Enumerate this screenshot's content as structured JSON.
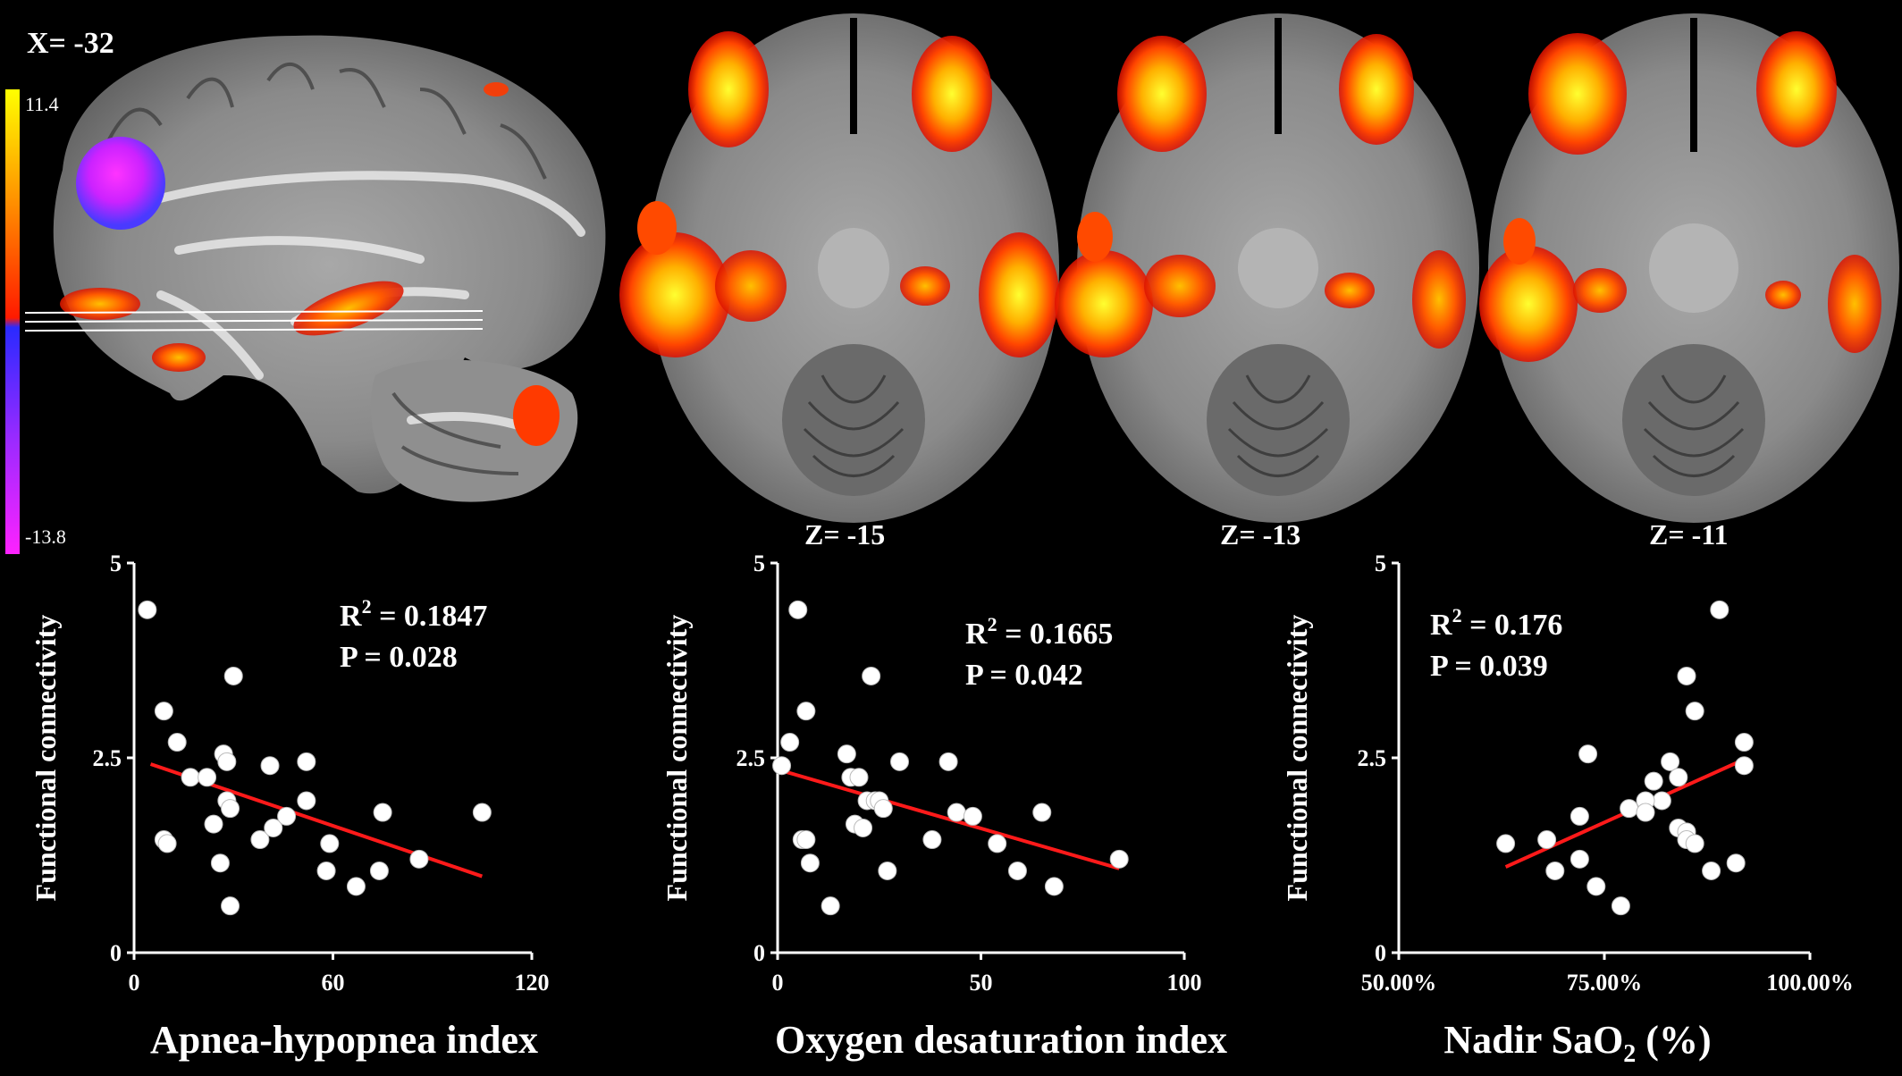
{
  "figure": {
    "sagittal_label": "X= -32",
    "colorbar": {
      "max": "11.4",
      "min": "-13.8",
      "colors": [
        "#ffff00",
        "#ff8c00",
        "#ff1a00",
        "#2a2aff",
        "#ff22ff"
      ]
    },
    "axial_labels": [
      "Z= -15",
      "Z= -13",
      "Z= -11"
    ]
  },
  "chart_data": [
    {
      "type": "scatter",
      "xlabel": "Apnea-hypopnea index",
      "ylabel": "Functional connectivity",
      "xlim": [
        0,
        120
      ],
      "ylim": [
        0,
        5
      ],
      "xticks": [
        "0",
        "60",
        "120"
      ],
      "yticks": [
        "0",
        "2.5",
        "5"
      ],
      "annotation": {
        "r2_prefix": "R",
        "r2_sup": "2",
        "r2_value": " = 0.1847",
        "p": "P = 0.028"
      },
      "points": [
        [
          4,
          4.4
        ],
        [
          9,
          3.1
        ],
        [
          30,
          3.55
        ],
        [
          13,
          2.7
        ],
        [
          27,
          2.55
        ],
        [
          17,
          2.25
        ],
        [
          22,
          2.25
        ],
        [
          28,
          2.45
        ],
        [
          9,
          1.45
        ],
        [
          10,
          1.4
        ],
        [
          24,
          1.65
        ],
        [
          26,
          1.15
        ],
        [
          28,
          1.95
        ],
        [
          29,
          1.85
        ],
        [
          29,
          0.6
        ],
        [
          38,
          1.45
        ],
        [
          41,
          2.4
        ],
        [
          42,
          1.6
        ],
        [
          46,
          1.75
        ],
        [
          52,
          2.45
        ],
        [
          52,
          1.95
        ],
        [
          58,
          1.05
        ],
        [
          59,
          1.4
        ],
        [
          67,
          0.85
        ],
        [
          74,
          1.05
        ],
        [
          75,
          1.8
        ],
        [
          86,
          1.2
        ],
        [
          105,
          1.8
        ]
      ],
      "trendline": {
        "x": [
          5,
          105
        ],
        "y": [
          2.42,
          0.98
        ],
        "color": "#ff1a1a"
      }
    },
    {
      "type": "scatter",
      "xlabel": "Oxygen desaturation index",
      "ylabel": "Functional connectivity",
      "xlim": [
        0,
        100
      ],
      "ylim": [
        0,
        5
      ],
      "xticks": [
        "0",
        "50",
        "100"
      ],
      "yticks": [
        "0",
        "2.5",
        "5"
      ],
      "annotation": {
        "r2_prefix": "R",
        "r2_sup": "2",
        "r2_value": " = 0.1665",
        "p": "P = 0.042"
      },
      "points": [
        [
          5,
          4.4
        ],
        [
          1,
          2.4
        ],
        [
          3,
          2.7
        ],
        [
          7,
          3.1
        ],
        [
          6,
          1.45
        ],
        [
          7,
          1.45
        ],
        [
          8,
          1.15
        ],
        [
          13,
          0.6
        ],
        [
          17,
          2.55
        ],
        [
          18,
          2.25
        ],
        [
          19,
          1.65
        ],
        [
          20,
          2.25
        ],
        [
          21,
          1.6
        ],
        [
          22,
          1.95
        ],
        [
          23,
          3.55
        ],
        [
          24,
          1.95
        ],
        [
          25,
          1.95
        ],
        [
          26,
          1.85
        ],
        [
          27,
          1.05
        ],
        [
          30,
          2.45
        ],
        [
          38,
          1.45
        ],
        [
          42,
          2.45
        ],
        [
          44,
          1.8
        ],
        [
          48,
          1.75
        ],
        [
          54,
          1.4
        ],
        [
          59,
          1.05
        ],
        [
          65,
          1.8
        ],
        [
          68,
          0.85
        ],
        [
          84,
          1.2
        ]
      ],
      "trendline": {
        "x": [
          2,
          84
        ],
        "y": [
          2.32,
          1.08
        ],
        "color": "#ff1a1a"
      }
    },
    {
      "type": "scatter",
      "xlabel_main": "Nadir SaO",
      "xlabel_sub": "2",
      "xlabel_end": " (%)",
      "ylabel": "Functional connectivity",
      "xlim": [
        0.5,
        1.0
      ],
      "ylim": [
        0,
        5
      ],
      "xticks": [
        "50.00%",
        "75.00%",
        "100.00%"
      ],
      "yticks": [
        "0",
        "2.5",
        "5"
      ],
      "annotation": {
        "r2_prefix": "R",
        "r2_sup": "2",
        "r2_value": " = 0.176",
        "p": "P = 0.039"
      },
      "points": [
        [
          0.89,
          4.4
        ],
        [
          0.85,
          3.55
        ],
        [
          0.86,
          3.1
        ],
        [
          0.92,
          2.7
        ],
        [
          0.73,
          2.55
        ],
        [
          0.92,
          2.4
        ],
        [
          0.83,
          2.45
        ],
        [
          0.84,
          2.25
        ],
        [
          0.81,
          2.2
        ],
        [
          0.82,
          1.95
        ],
        [
          0.8,
          1.95
        ],
        [
          0.78,
          1.85
        ],
        [
          0.8,
          1.8
        ],
        [
          0.72,
          1.75
        ],
        [
          0.84,
          1.6
        ],
        [
          0.85,
          1.55
        ],
        [
          0.85,
          1.45
        ],
        [
          0.86,
          1.4
        ],
        [
          0.63,
          1.4
        ],
        [
          0.68,
          1.45
        ],
        [
          0.72,
          1.2
        ],
        [
          0.69,
          1.05
        ],
        [
          0.74,
          0.85
        ],
        [
          0.77,
          0.6
        ],
        [
          0.88,
          1.05
        ],
        [
          0.91,
          1.15
        ]
      ],
      "trendline": {
        "x": [
          0.63,
          0.92
        ],
        "y": [
          1.1,
          2.48
        ],
        "color": "#ff1a1a"
      }
    }
  ]
}
